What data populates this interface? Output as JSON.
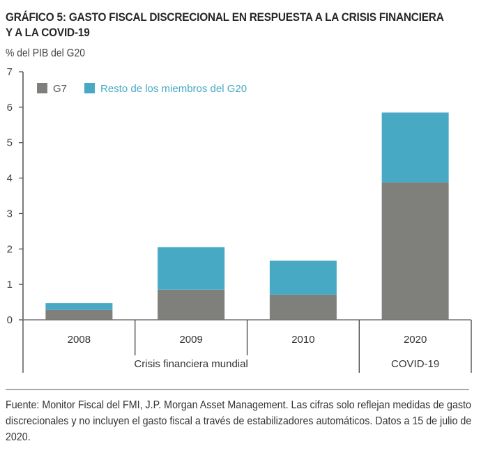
{
  "title": "GRÁFICO 5: GASTO FISCAL DISCRECIONAL EN RESPUESTA A LA CRISIS FINANCIERA Y A LA COVID-19",
  "unit_label": "% del PIB del G20",
  "footer": "Fuente: Monitor Fiscal del FMI, J.P. Morgan Asset Management. Las cifras solo reflejan medidas de gasto discrecionales y no incluyen el gasto fiscal a través de estabilizadores automáticos. Datos a 15 de julio de 2020.",
  "chart_data": {
    "type": "bar",
    "stacked": true,
    "title": "GRÁFICO 5: GASTO FISCAL DISCRECIONAL EN RESPUESTA A LA CRISIS FINANCIERA Y A LA COVID-19",
    "ylabel": "% del PIB del G20",
    "xlabel": "",
    "ylim": [
      0,
      7
    ],
    "yticks": [
      "0",
      "1",
      "2",
      "3",
      "4",
      "5",
      "6",
      "7"
    ],
    "categories": [
      "2008",
      "2009",
      "2010",
      "2020"
    ],
    "groups": [
      {
        "label": "Crisis financiera mundial",
        "categories": [
          "2008",
          "2009",
          "2010"
        ]
      },
      {
        "label": "COVID-19",
        "categories": [
          "2020"
        ]
      }
    ],
    "series": [
      {
        "name": "G7",
        "color": "#7f7f7c",
        "values": [
          0.28,
          0.85,
          0.71,
          3.88
        ]
      },
      {
        "name": "Resto de los miembros del G20",
        "color": "#48a9c5",
        "values": [
          0.19,
          1.2,
          0.96,
          1.97
        ]
      }
    ],
    "legend_position": "top-left",
    "grid": false
  }
}
